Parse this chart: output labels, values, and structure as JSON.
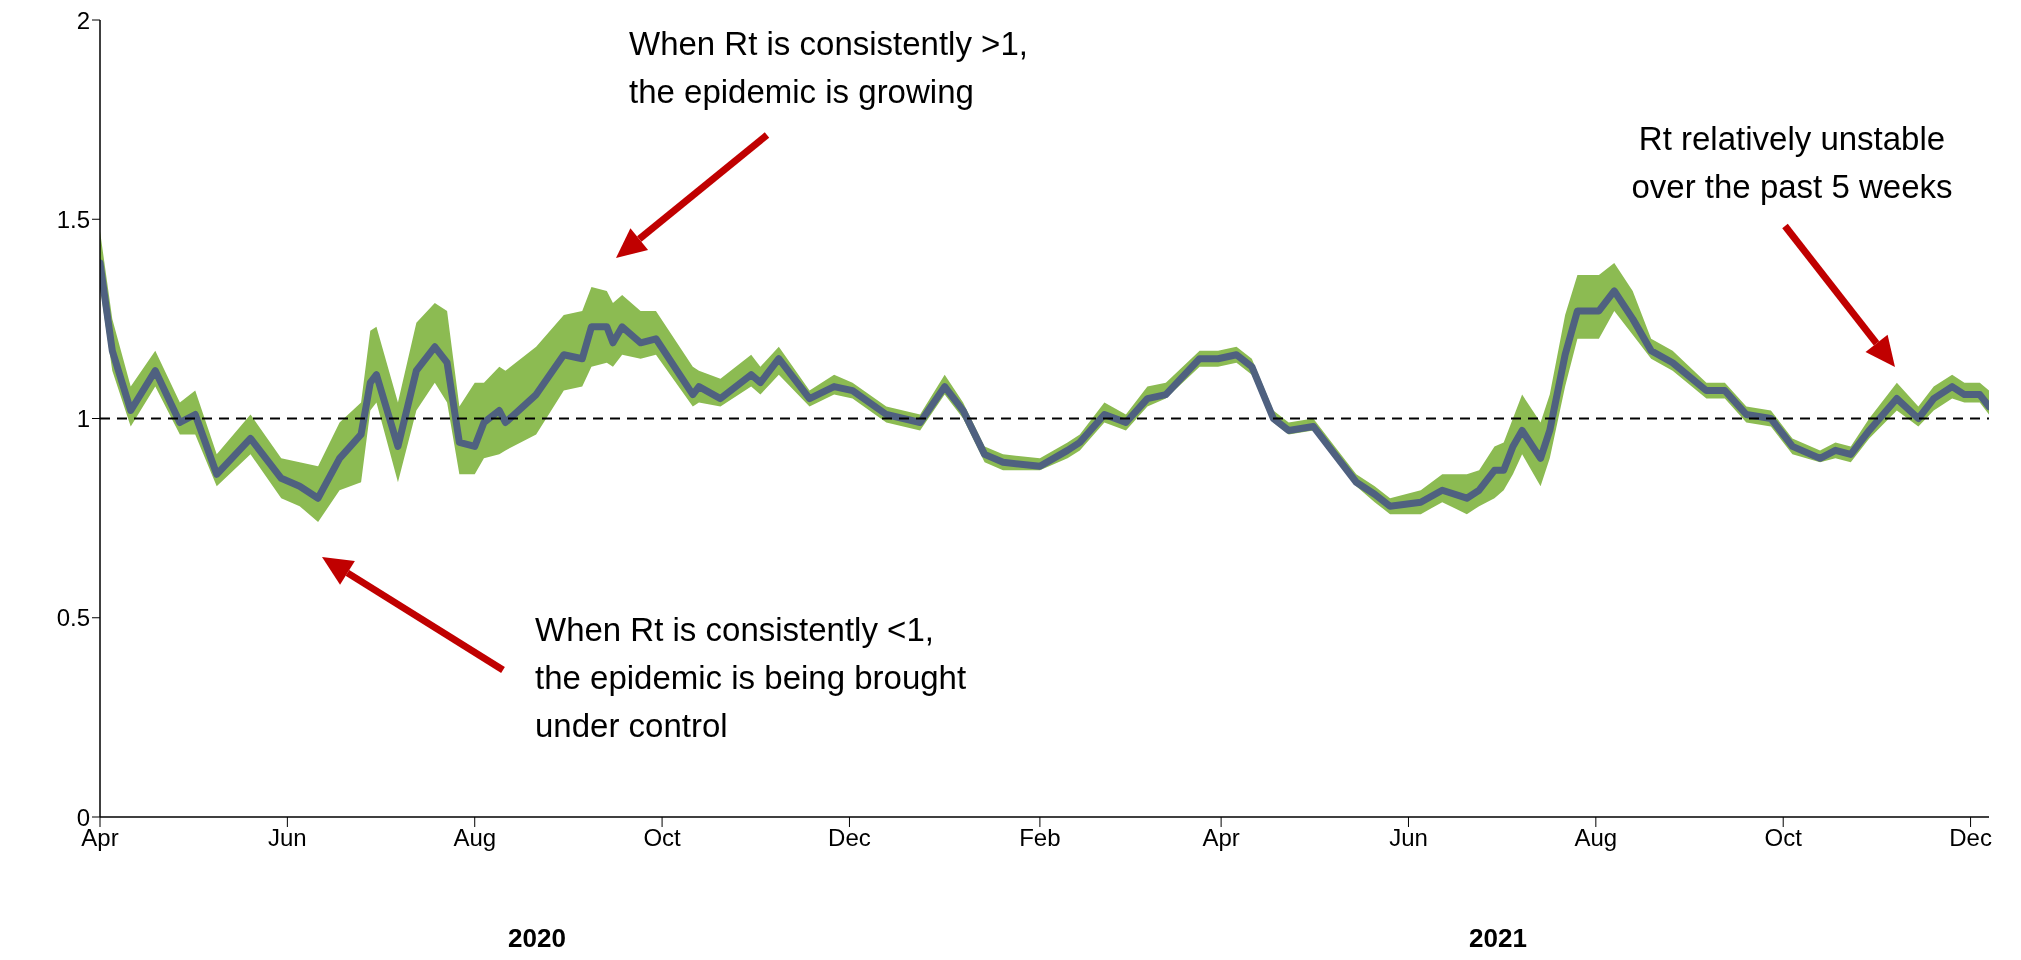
{
  "chart_data": {
    "type": "line",
    "x": [
      "2020-04-01",
      "2020-04-05",
      "2020-04-11",
      "2020-04-19",
      "2020-04-27",
      "2020-05-02",
      "2020-05-09",
      "2020-05-20",
      "2020-05-30",
      "2020-06-05",
      "2020-06-11",
      "2020-06-18",
      "2020-06-25",
      "2020-06-28",
      "2020-06-30",
      "2020-07-07",
      "2020-07-13",
      "2020-07-19",
      "2020-07-23",
      "2020-07-27",
      "2020-08-01",
      "2020-08-04",
      "2020-08-09",
      "2020-08-11",
      "2020-08-21",
      "2020-08-30",
      "2020-09-05",
      "2020-09-08",
      "2020-09-13",
      "2020-09-15",
      "2020-09-18",
      "2020-09-24",
      "2020-09-29",
      "2020-10-11",
      "2020-10-13",
      "2020-10-20",
      "2020-10-30",
      "2020-11-02",
      "2020-11-08",
      "2020-11-18",
      "2020-11-26",
      "2020-12-02",
      "2020-12-13",
      "2020-12-24",
      "2021-01-01",
      "2021-01-07",
      "2021-01-14",
      "2021-01-20",
      "2021-02-01",
      "2021-02-10",
      "2021-02-14",
      "2021-02-22",
      "2021-03-01",
      "2021-03-08",
      "2021-03-14",
      "2021-03-25",
      "2021-03-31",
      "2021-04-06",
      "2021-04-11",
      "2021-04-18",
      "2021-04-23",
      "2021-05-01",
      "2021-05-08",
      "2021-05-15",
      "2021-05-21",
      "2021-05-26",
      "2021-06-05",
      "2021-06-12",
      "2021-06-20",
      "2021-06-24",
      "2021-06-29",
      "2021-07-02",
      "2021-07-05",
      "2021-07-08",
      "2021-07-14",
      "2021-07-17",
      "2021-07-22",
      "2021-07-26",
      "2021-08-02",
      "2021-08-07",
      "2021-08-13",
      "2021-08-19",
      "2021-08-26",
      "2021-09-06",
      "2021-09-12",
      "2021-09-19",
      "2021-09-27",
      "2021-10-04",
      "2021-10-13",
      "2021-10-18",
      "2021-10-23",
      "2021-10-29",
      "2021-11-07",
      "2021-11-14",
      "2021-11-19",
      "2021-11-25",
      "2021-11-29",
      "2021-12-04",
      "2021-12-07"
    ],
    "series": [
      {
        "color": "#4f6180",
        "values": [
          1.39,
          1.17,
          1.02,
          1.12,
          0.99,
          1.01,
          0.86,
          0.95,
          0.85,
          0.83,
          0.8,
          0.9,
          0.96,
          1.09,
          1.11,
          0.93,
          1.12,
          1.18,
          1.14,
          0.94,
          0.93,
          0.99,
          1.02,
          0.99,
          1.06,
          1.16,
          1.15,
          1.23,
          1.23,
          1.19,
          1.23,
          1.19,
          1.2,
          1.06,
          1.08,
          1.05,
          1.11,
          1.09,
          1.15,
          1.05,
          1.08,
          1.07,
          1.01,
          0.99,
          1.08,
          1.02,
          0.91,
          0.89,
          0.88,
          0.92,
          0.94,
          1.01,
          0.99,
          1.05,
          1.06,
          1.15,
          1.15,
          1.16,
          1.13,
          1.0,
          0.97,
          0.98,
          0.91,
          0.84,
          0.81,
          0.78,
          0.79,
          0.82,
          0.8,
          0.82,
          0.87,
          0.87,
          0.93,
          0.97,
          0.9,
          0.97,
          1.16,
          1.27,
          1.27,
          1.32,
          1.25,
          1.17,
          1.14,
          1.07,
          1.07,
          1.01,
          1.0,
          0.93,
          0.9,
          0.92,
          0.91,
          0.97,
          1.05,
          1.0,
          1.05,
          1.08,
          1.06,
          1.06,
          1.03
        ],
        "lower": [
          1.33,
          1.12,
          0.98,
          1.08,
          0.96,
          0.96,
          0.83,
          0.91,
          0.8,
          0.78,
          0.74,
          0.82,
          0.84,
          1.02,
          1.04,
          0.84,
          1.02,
          1.09,
          1.04,
          0.86,
          0.86,
          0.9,
          0.91,
          0.92,
          0.96,
          1.07,
          1.08,
          1.13,
          1.14,
          1.13,
          1.16,
          1.15,
          1.16,
          1.03,
          1.04,
          1.03,
          1.08,
          1.06,
          1.11,
          1.03,
          1.06,
          1.05,
          0.99,
          0.97,
          1.06,
          1.0,
          0.89,
          0.87,
          0.87,
          0.9,
          0.92,
          0.99,
          0.97,
          1.03,
          1.05,
          1.13,
          1.13,
          1.14,
          1.11,
          0.99,
          0.96,
          0.97,
          0.9,
          0.83,
          0.79,
          0.76,
          0.76,
          0.79,
          0.76,
          0.78,
          0.8,
          0.82,
          0.86,
          0.91,
          0.83,
          0.9,
          1.08,
          1.2,
          1.2,
          1.27,
          1.21,
          1.15,
          1.12,
          1.05,
          1.05,
          0.99,
          0.98,
          0.91,
          0.89,
          0.9,
          0.89,
          0.95,
          1.02,
          0.98,
          1.02,
          1.05,
          1.04,
          1.04,
          1.01
        ],
        "upper": [
          1.47,
          1.25,
          1.08,
          1.17,
          1.04,
          1.07,
          0.91,
          1.01,
          0.9,
          0.89,
          0.88,
          0.99,
          1.04,
          1.22,
          1.23,
          1.04,
          1.24,
          1.29,
          1.27,
          1.03,
          1.09,
          1.09,
          1.13,
          1.12,
          1.18,
          1.26,
          1.27,
          1.33,
          1.32,
          1.29,
          1.31,
          1.27,
          1.27,
          1.13,
          1.12,
          1.1,
          1.16,
          1.13,
          1.18,
          1.07,
          1.11,
          1.09,
          1.03,
          1.01,
          1.11,
          1.04,
          0.93,
          0.91,
          0.9,
          0.94,
          0.96,
          1.04,
          1.01,
          1.08,
          1.09,
          1.17,
          1.17,
          1.18,
          1.15,
          1.02,
          0.99,
          1.0,
          0.93,
          0.86,
          0.83,
          0.8,
          0.82,
          0.86,
          0.86,
          0.87,
          0.93,
          0.94,
          1.0,
          1.06,
          0.99,
          1.06,
          1.26,
          1.36,
          1.36,
          1.39,
          1.32,
          1.2,
          1.17,
          1.09,
          1.09,
          1.03,
          1.02,
          0.95,
          0.92,
          0.94,
          0.93,
          1.0,
          1.09,
          1.03,
          1.08,
          1.11,
          1.09,
          1.09,
          1.07
        ]
      }
    ],
    "xlim": [
      "2020-04-01",
      "2021-12-07"
    ],
    "xticks": [
      {
        "value": "2020-04-01",
        "label": "Apr"
      },
      {
        "value": "2020-06-01",
        "label": "Jun"
      },
      {
        "value": "2020-08-01",
        "label": "Aug"
      },
      {
        "value": "2020-10-01",
        "label": "Oct"
      },
      {
        "value": "2020-12-01",
        "label": "Dec"
      },
      {
        "value": "2021-02-01",
        "label": "Feb"
      },
      {
        "value": "2021-04-01",
        "label": "Apr"
      },
      {
        "value": "2021-06-01",
        "label": "Jun"
      },
      {
        "value": "2021-08-01",
        "label": "Aug"
      },
      {
        "value": "2021-10-01",
        "label": "Oct"
      },
      {
        "value": "2021-12-01",
        "label": "Dec"
      }
    ],
    "ylim": [
      0,
      2
    ],
    "yticks": [
      0,
      0.5,
      1,
      1.5,
      2
    ],
    "ref_lines": [
      {
        "axis": "y",
        "value": 1,
        "color": "#000000",
        "line_style": "dashed"
      }
    ],
    "annotations": [
      "When Rt is consistently >1,\nthe epidemic is growing",
      "When Rt is consistently <1,\nthe epidemic is being brought\nunder control",
      "Rt relatively unstable\nover the past 5 weeks",
      "2020",
      "2021"
    ]
  }
}
